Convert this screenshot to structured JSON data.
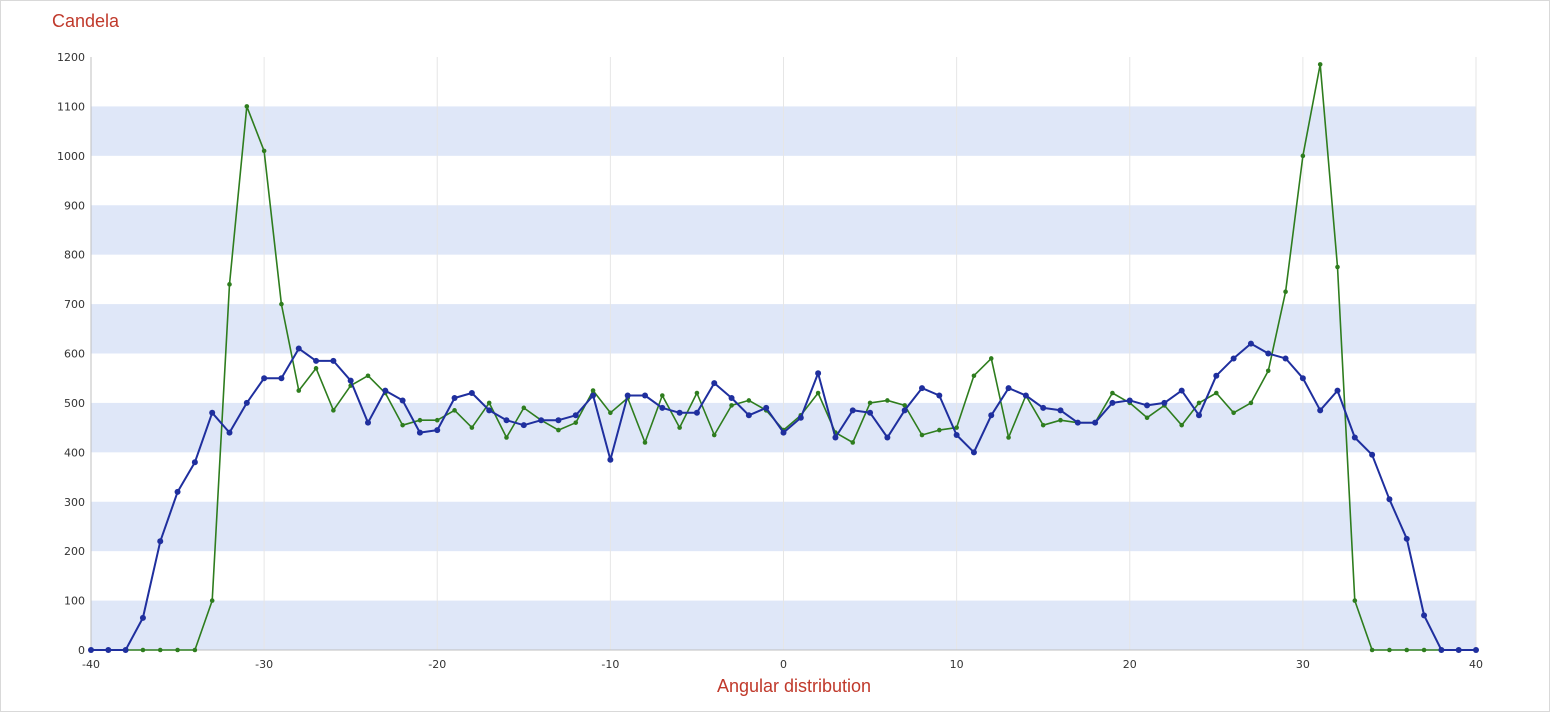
{
  "colors": {
    "band": "#dfe7f8",
    "grid": "#e6e6e6",
    "axis_label": "#c0392b",
    "series_green": "#2e7d1e",
    "series_blue": "#1f2f9e"
  },
  "chart_data": {
    "type": "line",
    "title": "",
    "xlabel": "Angular distribution",
    "ylabel": "Candela",
    "xlim": [
      -40,
      40
    ],
    "ylim": [
      0,
      1200
    ],
    "xticks": [
      -40,
      -30,
      -20,
      -10,
      0,
      10,
      20,
      30,
      40
    ],
    "yticks": [
      0,
      100,
      200,
      300,
      400,
      500,
      600,
      700,
      800,
      900,
      1000,
      1100,
      1200
    ],
    "x": [
      -40,
      -39,
      -38,
      -37,
      -36,
      -35,
      -34,
      -33,
      -32,
      -31,
      -30,
      -29,
      -28,
      -27,
      -26,
      -25,
      -24,
      -23,
      -22,
      -21,
      -20,
      -19,
      -18,
      -17,
      -16,
      -15,
      -14,
      -13,
      -12,
      -11,
      -10,
      -9,
      -8,
      -7,
      -6,
      -5,
      -4,
      -3,
      -2,
      -1,
      0,
      1,
      2,
      3,
      4,
      5,
      6,
      7,
      8,
      9,
      10,
      11,
      12,
      13,
      14,
      15,
      16,
      17,
      18,
      19,
      20,
      21,
      22,
      23,
      24,
      25,
      26,
      27,
      28,
      29,
      30,
      31,
      32,
      33,
      34,
      35,
      36,
      37,
      38,
      39,
      40
    ],
    "grid": "horizontal bands",
    "legend": "none",
    "series": [
      {
        "color": "#2e7d1e",
        "values": [
          0,
          0,
          0,
          0,
          0,
          0,
          0,
          100,
          740,
          1100,
          1010,
          700,
          525,
          570,
          485,
          535,
          555,
          520,
          455,
          465,
          465,
          485,
          450,
          500,
          430,
          490,
          465,
          445,
          460,
          525,
          480,
          510,
          420,
          515,
          450,
          520,
          435,
          495,
          505,
          485,
          445,
          475,
          520,
          440,
          420,
          500,
          505,
          495,
          435,
          445,
          450,
          555,
          590,
          430,
          515,
          455,
          465,
          460,
          460,
          520,
          500,
          470,
          495,
          455,
          500,
          520,
          480,
          500,
          565,
          725,
          1000,
          1185,
          775,
          100,
          0,
          0,
          0,
          0,
          0,
          0,
          0
        ]
      },
      {
        "color": "#1f2f9e",
        "values": [
          0,
          0,
          0,
          65,
          220,
          320,
          380,
          480,
          440,
          500,
          550,
          550,
          610,
          585,
          585,
          545,
          460,
          525,
          505,
          440,
          445,
          510,
          520,
          485,
          465,
          455,
          465,
          465,
          475,
          515,
          385,
          515,
          515,
          490,
          480,
          480,
          540,
          510,
          475,
          490,
          440,
          470,
          560,
          430,
          485,
          480,
          430,
          485,
          530,
          515,
          435,
          400,
          475,
          530,
          515,
          490,
          485,
          460,
          460,
          500,
          505,
          495,
          500,
          525,
          475,
          555,
          590,
          620,
          600,
          590,
          550,
          485,
          525,
          430,
          395,
          305,
          225,
          70,
          0,
          0,
          0
        ]
      }
    ]
  }
}
